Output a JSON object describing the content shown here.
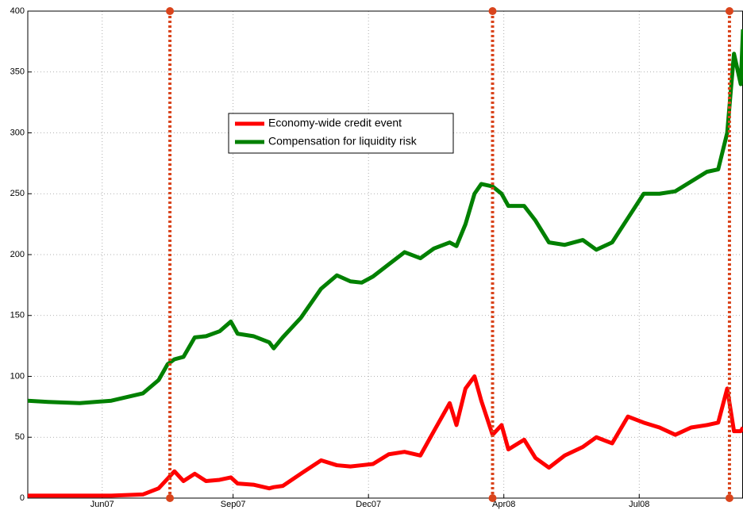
{
  "chart_data": {
    "type": "line",
    "x": [
      0,
      9,
      23,
      37,
      51,
      58,
      62,
      65,
      69,
      74,
      79,
      85,
      90,
      93,
      100,
      107,
      109,
      113,
      121,
      130,
      137,
      143,
      148,
      153,
      160,
      167,
      174,
      180,
      187,
      190,
      194,
      198,
      201,
      206,
      210,
      213,
      220,
      225,
      231,
      238,
      246,
      252,
      259,
      266,
      273,
      280,
      287,
      294,
      301,
      306,
      310,
      313,
      316,
      317
    ],
    "series": [
      {
        "name": "Economy-wide credit event",
        "color": "#ff0000",
        "values": [
          2,
          2,
          2,
          2,
          3,
          8,
          16,
          22,
          14,
          20,
          14,
          15,
          17,
          12,
          11,
          8,
          9,
          10,
          20,
          31,
          27,
          26,
          27,
          28,
          36,
          38,
          35,
          55,
          78,
          60,
          90,
          100,
          80,
          52,
          60,
          40,
          48,
          33,
          25,
          35,
          42,
          50,
          45,
          67,
          62,
          58,
          52,
          58,
          60,
          62,
          90,
          55,
          55,
          58
        ]
      },
      {
        "name": "Compensation for liquidity risk",
        "color": "#008000",
        "values": [
          80,
          79,
          78,
          80,
          86,
          97,
          110,
          114,
          116,
          132,
          133,
          137,
          145,
          135,
          133,
          128,
          123,
          132,
          148,
          172,
          183,
          178,
          177,
          182,
          192,
          202,
          197,
          205,
          210,
          207,
          225,
          250,
          258,
          256,
          250,
          240,
          240,
          228,
          210,
          208,
          212,
          204,
          210,
          230,
          250,
          250,
          252,
          260,
          268,
          270,
          300,
          365,
          340,
          385
        ]
      }
    ],
    "event_lines": [
      63,
      206,
      311
    ],
    "event_color": "#d9441c",
    "xlim": [
      0,
      317
    ],
    "xticks": [
      {
        "value": 33,
        "label": "Jun07"
      },
      {
        "value": 91,
        "label": "Sep07"
      },
      {
        "value": 151,
        "label": "Dec07"
      },
      {
        "value": 211,
        "label": "Apr08"
      },
      {
        "value": 271,
        "label": "Jul08"
      }
    ],
    "ylim": [
      0,
      400
    ],
    "yticks": [
      0,
      50,
      100,
      150,
      200,
      250,
      300,
      350,
      400
    ],
    "grid": true,
    "legend": "upper center"
  }
}
